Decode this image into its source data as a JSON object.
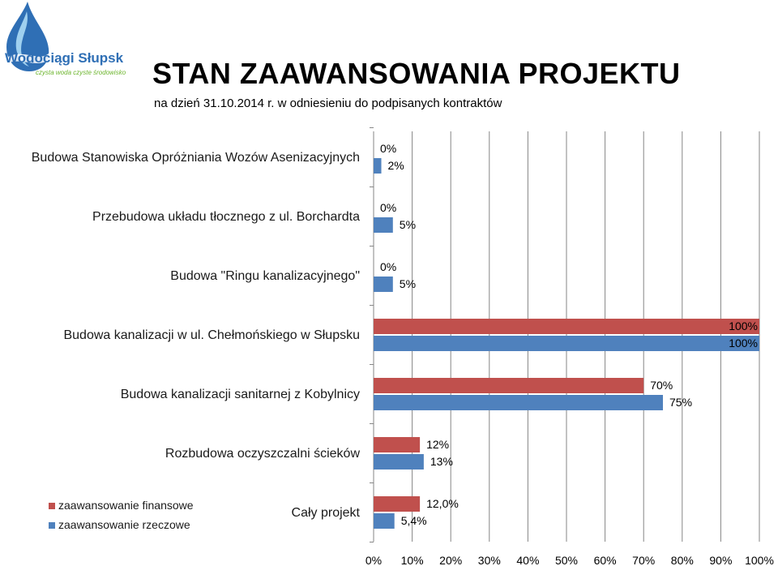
{
  "logo": {
    "name": "Wodociągi Słupsk",
    "tagline": "czysta woda czyste środowisko",
    "colors": {
      "blue": "#2f6fb5",
      "green": "#6cb52d",
      "drop_light": "#9fd0ef"
    }
  },
  "header": {
    "title": "STAN ZAAWANSOWANIA PROJEKTU",
    "subtitle": "na dzień 31.10.2014 r. w odniesieniu do podpisanych kontraktów"
  },
  "chart_data": {
    "type": "bar",
    "orientation": "horizontal",
    "categories": [
      "Budowa Stanowiska Opróżniania Wozów Asenizacyjnych",
      "Przebudowa układu tłocznego z ul. Borchardta",
      "Budowa \"Ringu kanalizacyjnego\"",
      "Budowa kanalizacji w ul. Chełmońskiego w Słupsku",
      "Budowa kanalizacji sanitarnej z Kobylnicy",
      "Rozbudowa oczyszczalni ścieków",
      "Cały projekt"
    ],
    "series": [
      {
        "name": "zaawansowanie finansowe",
        "color": "#c0504d",
        "values": [
          0,
          0,
          0,
          100,
          70,
          12,
          12.0
        ],
        "labels": [
          "0%",
          "0%",
          "0%",
          "100%",
          "70%",
          "12%",
          "12,0%"
        ]
      },
      {
        "name": "zaawansowanie rzeczowe",
        "color": "#4f81bd",
        "values": [
          2,
          5,
          5,
          100,
          75,
          13,
          5.4
        ],
        "labels": [
          "2%",
          "5%",
          "5%",
          "100%",
          "75%",
          "13%",
          "5,4%"
        ]
      }
    ],
    "xlim": [
      0,
      100
    ],
    "xticks": [
      "0%",
      "10%",
      "20%",
      "30%",
      "40%",
      "50%",
      "60%",
      "70%",
      "80%",
      "90%",
      "100%"
    ],
    "grid": "vertical",
    "legend_position": "bottom-left"
  }
}
